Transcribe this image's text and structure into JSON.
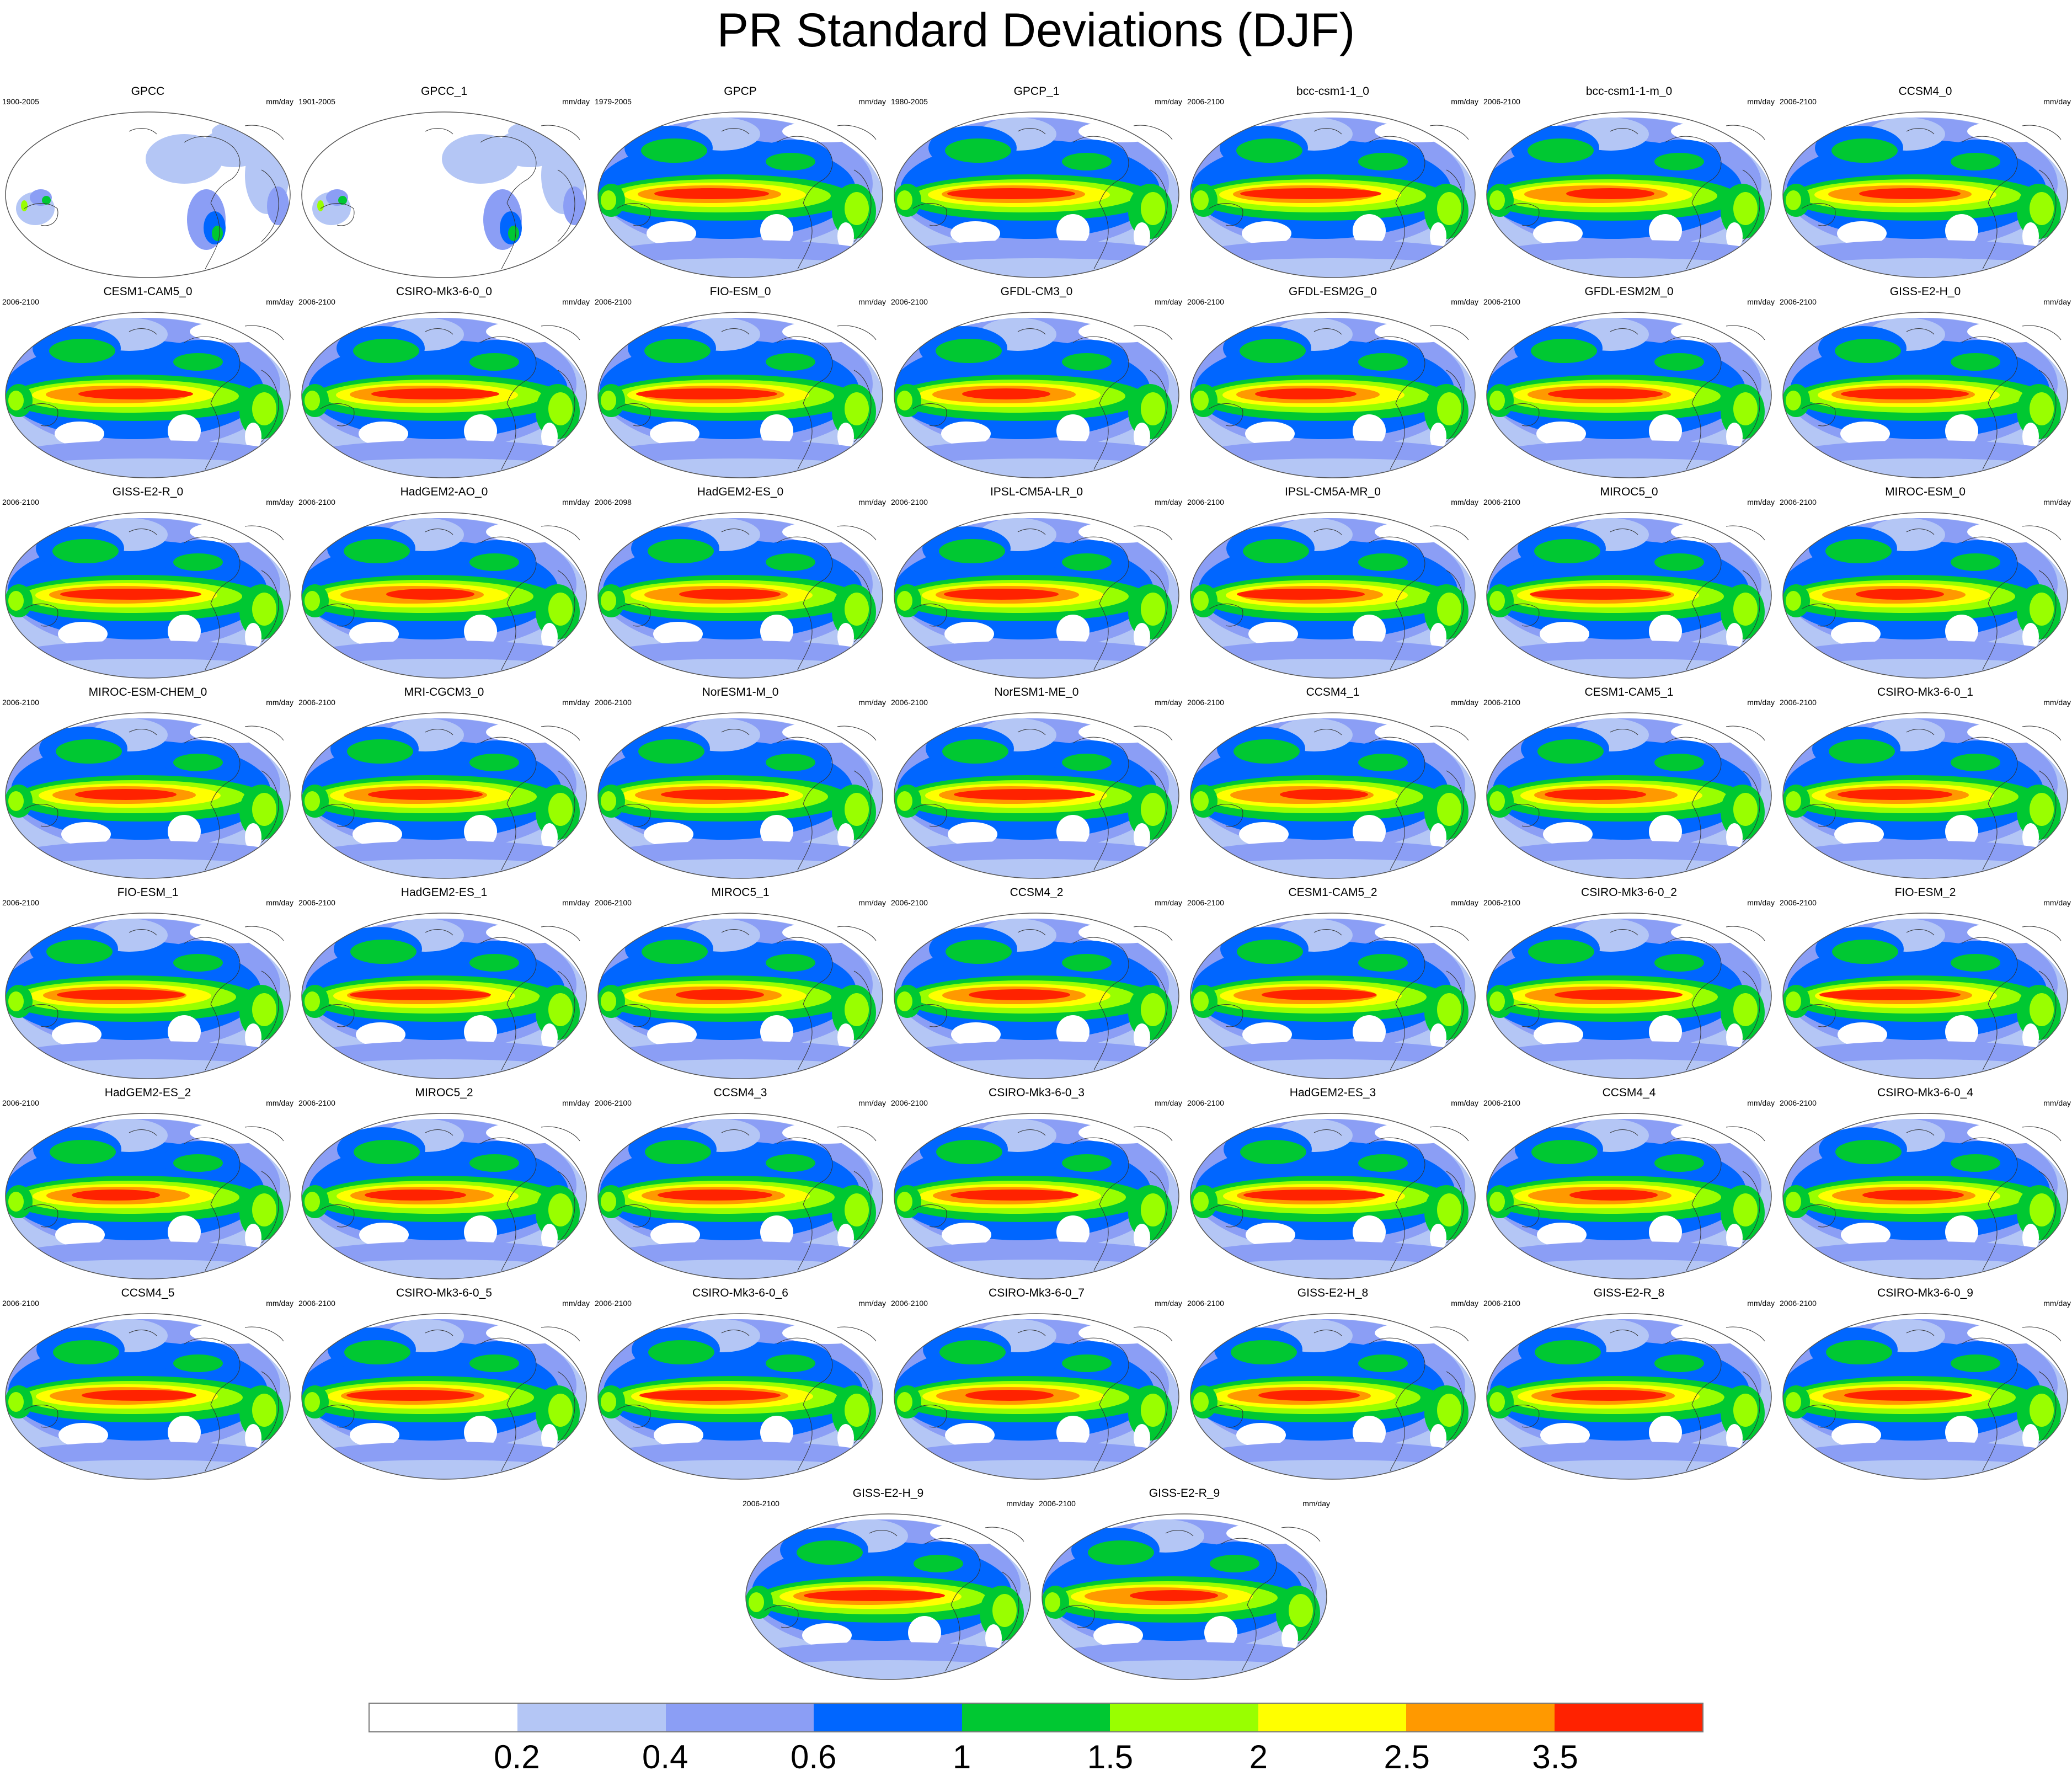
{
  "title": "PR Standard Deviations (DJF)",
  "units": "mm/day",
  "panels": [
    {
      "name": "GPCC",
      "period": "1900-2005"
    },
    {
      "name": "GPCC_1",
      "period": "1901-2005"
    },
    {
      "name": "GPCP",
      "period": "1979-2005"
    },
    {
      "name": "GPCP_1",
      "period": "1980-2005"
    },
    {
      "name": "bcc-csm1-1_0",
      "period": "2006-2100"
    },
    {
      "name": "bcc-csm1-1-m_0",
      "period": "2006-2100"
    },
    {
      "name": "CCSM4_0",
      "period": "2006-2100"
    },
    {
      "name": "CESM1-CAM5_0",
      "period": "2006-2100"
    },
    {
      "name": "CSIRO-Mk3-6-0_0",
      "period": "2006-2100"
    },
    {
      "name": "FIO-ESM_0",
      "period": "2006-2100"
    },
    {
      "name": "GFDL-CM3_0",
      "period": "2006-2100"
    },
    {
      "name": "GFDL-ESM2G_0",
      "period": "2006-2100"
    },
    {
      "name": "GFDL-ESM2M_0",
      "period": "2006-2100"
    },
    {
      "name": "GISS-E2-H_0",
      "period": "2006-2100"
    },
    {
      "name": "GISS-E2-R_0",
      "period": "2006-2100"
    },
    {
      "name": "HadGEM2-AO_0",
      "period": "2006-2100"
    },
    {
      "name": "HadGEM2-ES_0",
      "period": "2006-2098"
    },
    {
      "name": "IPSL-CM5A-LR_0",
      "period": "2006-2100"
    },
    {
      "name": "IPSL-CM5A-MR_0",
      "period": "2006-2100"
    },
    {
      "name": "MIROC5_0",
      "period": "2006-2100"
    },
    {
      "name": "MIROC-ESM_0",
      "period": "2006-2100"
    },
    {
      "name": "MIROC-ESM-CHEM_0",
      "period": "2006-2100"
    },
    {
      "name": "MRI-CGCM3_0",
      "period": "2006-2100"
    },
    {
      "name": "NorESM1-M_0",
      "period": "2006-2100"
    },
    {
      "name": "NorESM1-ME_0",
      "period": "2006-2100"
    },
    {
      "name": "CCSM4_1",
      "period": "2006-2100"
    },
    {
      "name": "CESM1-CAM5_1",
      "period": "2006-2100"
    },
    {
      "name": "CSIRO-Mk3-6-0_1",
      "period": "2006-2100"
    },
    {
      "name": "FIO-ESM_1",
      "period": "2006-2100"
    },
    {
      "name": "HadGEM2-ES_1",
      "period": "2006-2100"
    },
    {
      "name": "MIROC5_1",
      "period": "2006-2100"
    },
    {
      "name": "CCSM4_2",
      "period": "2006-2100"
    },
    {
      "name": "CESM1-CAM5_2",
      "period": "2006-2100"
    },
    {
      "name": "CSIRO-Mk3-6-0_2",
      "period": "2006-2100"
    },
    {
      "name": "FIO-ESM_2",
      "period": "2006-2100"
    },
    {
      "name": "HadGEM2-ES_2",
      "period": "2006-2100"
    },
    {
      "name": "MIROC5_2",
      "period": "2006-2100"
    },
    {
      "name": "CCSM4_3",
      "period": "2006-2100"
    },
    {
      "name": "CSIRO-Mk3-6-0_3",
      "period": "2006-2100"
    },
    {
      "name": "HadGEM2-ES_3",
      "period": "2006-2100"
    },
    {
      "name": "CCSM4_4",
      "period": "2006-2100"
    },
    {
      "name": "CSIRO-Mk3-6-0_4",
      "period": "2006-2100"
    },
    {
      "name": "CCSM4_5",
      "period": "2006-2100"
    },
    {
      "name": "CSIRO-Mk3-6-0_5",
      "period": "2006-2100"
    },
    {
      "name": "CSIRO-Mk3-6-0_6",
      "period": "2006-2100"
    },
    {
      "name": "CSIRO-Mk3-6-0_7",
      "period": "2006-2100"
    },
    {
      "name": "GISS-E2-H_8",
      "period": "2006-2100"
    },
    {
      "name": "GISS-E2-R_8",
      "period": "2006-2100"
    },
    {
      "name": "CSIRO-Mk3-6-0_9",
      "period": "2006-2100"
    },
    {
      "name": "GISS-E2-H_9",
      "period": "2006-2100"
    },
    {
      "name": "GISS-E2-R_9",
      "period": "2006-2100"
    }
  ],
  "colorbar": {
    "colors": [
      "#ffffff",
      "#b4c6f5",
      "#8b9ef5",
      "#0066ff",
      "#00c832",
      "#99ff00",
      "#ffff00",
      "#ff9900",
      "#ff2200"
    ],
    "labels": [
      "0.2",
      "0.4",
      "0.6",
      "1",
      "1.5",
      "2",
      "2.5",
      "3.5"
    ]
  }
}
